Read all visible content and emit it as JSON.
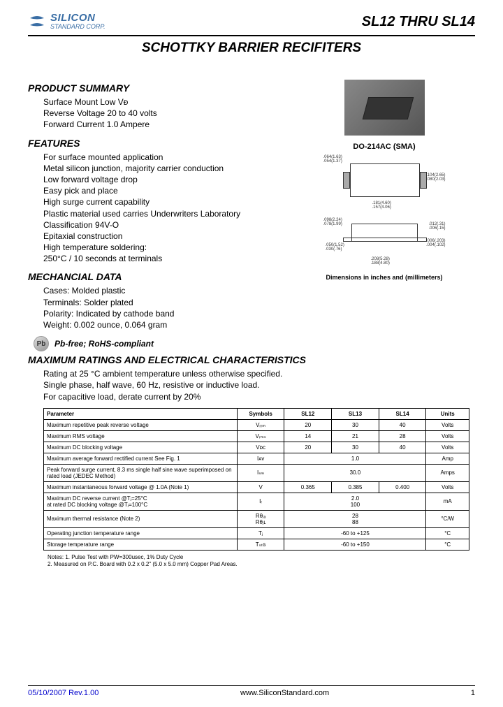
{
  "header": {
    "logo_line1": "SILICON",
    "logo_line2": "STANDARD CORP.",
    "part_number": "SL12 THRU SL14"
  },
  "main_title": "SCHOTTKY BARRIER RECIFITERS",
  "product_summary": {
    "title": "PRODUCT SUMMARY",
    "lines": [
      "Surface Mount Low Vᴆ",
      "Reverse Voltage 20 to 40 volts",
      "Forward Current 1.0 Ampere"
    ]
  },
  "features": {
    "title": "FEATURES",
    "lines": [
      "For surface mounted application",
      "Metal silicon junction, majority carrier conduction",
      "Low forward voltage drop",
      "Easy pick and place",
      "High surge current capability",
      "Plastic material used carries Underwriters Laboratory",
      "Classification 94V-O",
      "Epitaxial construction",
      "High temperature soldering:",
      "250°C / 10 seconds at terminals"
    ]
  },
  "mechanical": {
    "title": "MECHANCIAL DATA",
    "lines": [
      "Cases: Molded plastic",
      "Terminals: Solder plated",
      "Polarity: Indicated by cathode band",
      "Weight: 0.002 ounce, 0.064 gram"
    ]
  },
  "pb": {
    "badge": "Pb",
    "text": "Pb-free; RoHS-compliant"
  },
  "package": {
    "label": "DO-214AC (SMA)",
    "dim_caption": "Dimensions in inches and (millimeters)",
    "top_dims": {
      "left": ".064(1.63)\n.054(1.37)",
      "right": ".104(2.65)\n.080(2.03)",
      "bottom": ".181(4.60)\n.157(4.06)"
    },
    "side_dims": {
      "left1": ".098(2.24)\n.078(1.99)",
      "left2": ".050(1.52)\n.030(.76)",
      "right1": ".012(.31)\n.006(.15)",
      "right2": ".006(.203)\n.004(.102)",
      "bottom": ".208(5.28)\n.188(4.80)"
    }
  },
  "ratings": {
    "title": "MAXIMUM RATINGS AND ELECTRICAL CHARACTERISTICS",
    "intro": [
      "Rating at 25 °C ambient temperature unless otherwise specified.",
      "Single phase, half wave, 60 Hz, resistive or inductive load.",
      "For capacitive load, derate current by 20%"
    ],
    "columns": [
      "Parameter",
      "Symbols",
      "SL12",
      "SL13",
      "SL14",
      "Units"
    ],
    "rows": [
      {
        "param": "Maximum repetitive peak reverse voltage",
        "sym": "Vᵣᵣₘ",
        "vals": [
          "20",
          "30",
          "40"
        ],
        "unit": "Volts"
      },
      {
        "param": "Maximum RMS voltage",
        "sym": "Vᵣₘₛ",
        "vals": [
          "14",
          "21",
          "28"
        ],
        "unit": "Volts"
      },
      {
        "param": "Maximum DC blocking voltage",
        "sym": "Vᴅᴄ",
        "vals": [
          "20",
          "30",
          "40"
        ],
        "unit": "Volts"
      },
      {
        "param": "Maximum average forward rectified current See Fig. 1",
        "sym": "Iᴀᴠ",
        "vals": [
          "1.0"
        ],
        "colspan": 3,
        "unit": "Amp"
      },
      {
        "param": "Peak forward surge current, 8.3 ms single half sine wave superimposed on rated load (JEDEC Method)",
        "sym": "I꟱ₛₘ",
        "vals": [
          "30.0"
        ],
        "colspan": 3,
        "unit": "Amps"
      },
      {
        "param": "Maximum instantaneous forward voltage @ 1.0A (Note 1)",
        "sym": "V꟱",
        "vals": [
          "0.365",
          "0.385",
          "0.400"
        ],
        "unit": "Volts"
      },
      {
        "param": "Maximum DC reverse current      @Tⱼ=25°C\nat rated DC blocking voltage    @Tⱼ=100°C",
        "sym": "Iᵣ",
        "vals": [
          "2.0\n100"
        ],
        "colspan": 3,
        "unit": "mA"
      },
      {
        "param": "Maximum thermal resistance (Note 2)",
        "sym": "Rθⱼₐ\nRθⱼʟ",
        "vals": [
          "28\n88"
        ],
        "colspan": 3,
        "unit": "°C/W"
      },
      {
        "param": "Operating junction temperature range",
        "sym": "Tⱼ",
        "vals": [
          "-60 to +125"
        ],
        "colspan": 3,
        "unit": "°C"
      },
      {
        "param": "Storage temperature range",
        "sym": "Tₛₜɢ",
        "vals": [
          "-60 to +150"
        ],
        "colspan": 3,
        "unit": "°C"
      }
    ],
    "notes": [
      "Notes:   1. Pulse Test with PW=300usec, 1% Duty Cycle",
      "              2. Measured on P.C. Board with 0.2 x 0.2\" (5.0 x 5.0 mm) Copper Pad Areas."
    ]
  },
  "footer": {
    "date": "05/10/2007  Rev.1.00",
    "url": "www.SiliconStandard.com",
    "page": "1"
  }
}
